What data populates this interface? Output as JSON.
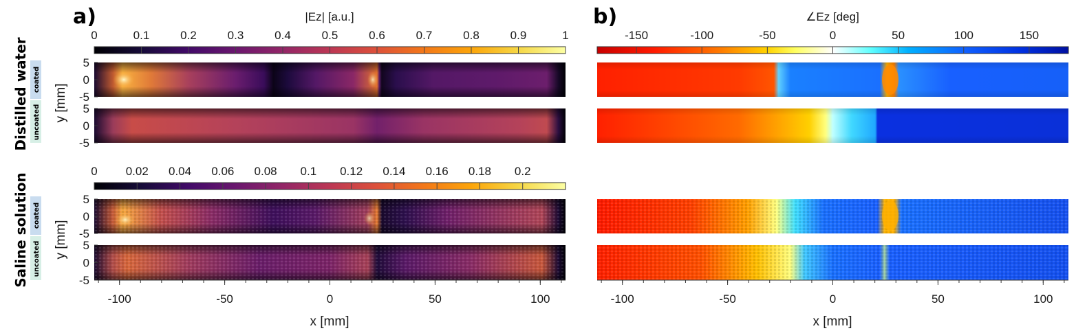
{
  "figure": {
    "panel_a_label": "a)",
    "panel_b_label": "b)",
    "row_groups": [
      {
        "label": "Distilled water",
        "sub_labels": [
          "coated",
          "uncoated"
        ]
      },
      {
        "label": "Saline solution",
        "sub_labels": [
          "coated",
          "uncoated"
        ]
      }
    ],
    "y_axis_label": "y [mm]",
    "x_axis_label": "x [mm]",
    "colors": {
      "coated_tag": "#c9dcef",
      "uncoated_tag": "#d7efe6"
    }
  },
  "chart_data": [
    {
      "type": "heatmap",
      "id": "magnitude-water",
      "title": "|Ez| [a.u.]",
      "colormap": "inferno",
      "colorbar_range": [
        0,
        1
      ],
      "colorbar_ticks": [
        "0",
        "0.1",
        "0.2",
        "0.3",
        "0.4",
        "0.5",
        "0.6",
        "0.7",
        "0.8",
        "0.9",
        "1"
      ],
      "xlim": [
        -112,
        112
      ],
      "ylim": [
        -5,
        5
      ],
      "yticks": [
        "5",
        "0",
        "-5"
      ],
      "rows": [
        "coated",
        "uncoated"
      ]
    },
    {
      "type": "heatmap",
      "id": "magnitude-saline",
      "title": "",
      "colormap": "inferno",
      "colorbar_range": [
        0,
        0.22
      ],
      "colorbar_ticks": [
        "0",
        "0.02",
        "0.04",
        "0.06",
        "0.08",
        "0.1",
        "0.12",
        "0.14",
        "0.16",
        "0.18",
        "0.2"
      ],
      "xlim": [
        -112,
        112
      ],
      "ylim": [
        -5,
        5
      ],
      "yticks": [
        "5",
        "0",
        "-5"
      ],
      "xticks": [
        "-100",
        "-50",
        "0",
        "50",
        "100"
      ],
      "rows": [
        "coated",
        "uncoated"
      ]
    },
    {
      "type": "heatmap",
      "id": "phase",
      "title": "∠Ez [deg]",
      "colormap": "jet-diverging",
      "colorbar_range": [
        -180,
        180
      ],
      "colorbar_ticks": [
        "-150",
        "-100",
        "-50",
        "0",
        "50",
        "100",
        "150"
      ],
      "colorbar_tick_values": [
        -150,
        -100,
        -50,
        0,
        50,
        100,
        150
      ],
      "xlim": [
        -112,
        112
      ],
      "ylim": [
        -5,
        5
      ],
      "xticks": [
        "-100",
        "-50",
        "0",
        "50",
        "100"
      ],
      "rows": [
        "water-coated",
        "water-uncoated",
        "saline-coated",
        "saline-uncoated"
      ]
    }
  ]
}
